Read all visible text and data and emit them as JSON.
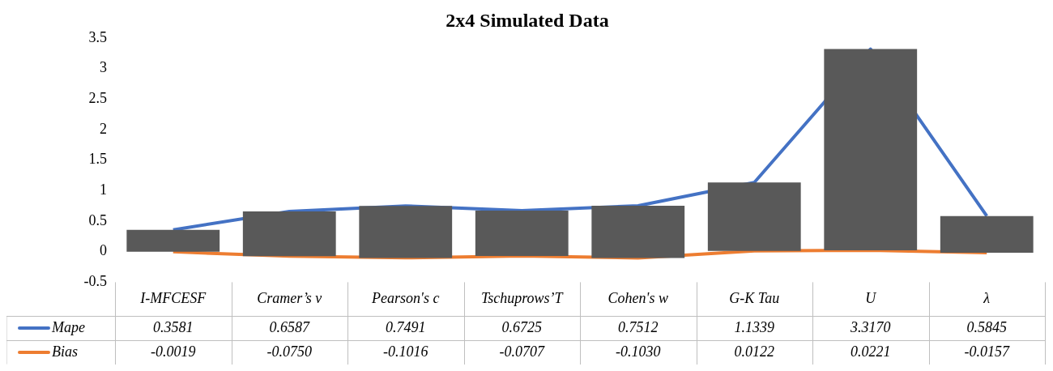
{
  "chart_data": {
    "type": "line",
    "title": "2x4 Simulated Data",
    "categories": [
      "I-MFCESF",
      "Cramer’s v",
      "Pearson's c",
      "Tschuprows’T",
      "Cohen's w",
      "G-K Tau",
      "U",
      "λ"
    ],
    "series": [
      {
        "name": "Mape",
        "color": "#4472c4",
        "values": [
          0.3581,
          0.6587,
          0.7491,
          0.6725,
          0.7512,
          1.1339,
          3.317,
          0.5845
        ],
        "value_labels": [
          "0.3581",
          "0.6587",
          "0.7491",
          "0.6725",
          "0.7512",
          "1.1339",
          "3.3170",
          "0.5845"
        ]
      },
      {
        "name": "Bias",
        "color": "#ed7d31",
        "values": [
          -0.0019,
          -0.075,
          -0.1016,
          -0.0707,
          -0.103,
          0.0122,
          0.0221,
          -0.0157
        ],
        "value_labels": [
          "-0.0019",
          "-0.0750",
          "-0.1016",
          "-0.0707",
          "-0.1030",
          "0.0122",
          "0.0221",
          "-0.0157"
        ]
      },
      {
        "type": "bar",
        "color": "#595959",
        "base": [
          -0.002,
          -0.075,
          -0.102,
          -0.071,
          -0.103,
          0.012,
          0.022,
          -0.016
        ],
        "values": [
          0.36,
          0.734,
          0.851,
          0.743,
          0.854,
          1.122,
          3.295,
          0.6
        ]
      }
    ],
    "ylim": [
      -0.5,
      3.5
    ],
    "yticks": [
      -0.5,
      0,
      0.5,
      1,
      1.5,
      2,
      2.5,
      3,
      3.5
    ],
    "grid": false,
    "legend": "bottom",
    "marker": "none"
  }
}
